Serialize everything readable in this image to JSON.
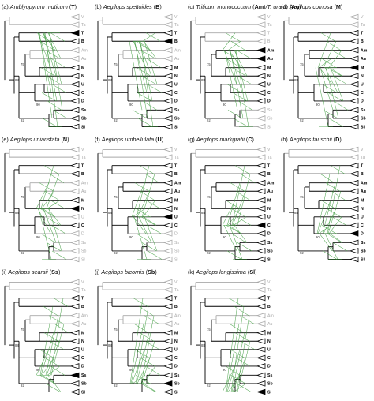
{
  "colors": {
    "black": "#000000",
    "gray": "#a8a8a8",
    "green": "#3a9a3a",
    "green_dark": "#2d6e2d"
  },
  "tips": [
    "V",
    "Ta",
    "T",
    "B",
    "Am",
    "Au",
    "M",
    "N",
    "U",
    "C",
    "D",
    "Ss",
    "Sb",
    "Sl"
  ],
  "support_values": [
    "75",
    "88",
    "90",
    "92"
  ],
  "panels": [
    {
      "id": "a",
      "letter": "(a)",
      "species": "Amblyopyrum muticum",
      "code": "T",
      "highlight": [
        "T"
      ],
      "bold": [
        "T",
        "B",
        "M",
        "N",
        "U",
        "C",
        "D",
        "Ss",
        "Sb",
        "Sl"
      ],
      "gray": [
        "V",
        "Ta",
        "Am",
        "Au"
      ]
    },
    {
      "id": "b",
      "letter": "(b)",
      "species": "Aegilops speltoides",
      "code": "B",
      "highlight": [
        "B"
      ],
      "bold": [
        "T",
        "B",
        "M",
        "N",
        "U",
        "C",
        "D",
        "Ss",
        "Sb",
        "Sl"
      ],
      "gray": [
        "V",
        "Ta",
        "Am",
        "Au"
      ]
    },
    {
      "id": "c",
      "letter": "(c)",
      "species": "Triticum monococcum",
      "code": "Am",
      "species2": "T. urartu",
      "code2": "Au",
      "highlight": [
        "Am",
        "Au"
      ],
      "bold": [
        "Am",
        "Au",
        "M",
        "N",
        "U",
        "C",
        "D"
      ],
      "gray": [
        "V",
        "Ta",
        "T",
        "B",
        "Ss",
        "Sb",
        "Sl"
      ]
    },
    {
      "id": "d",
      "letter": "(d)",
      "species": "Aegilops comosa",
      "code": "M",
      "highlight": [
        "M"
      ],
      "bold": [
        "T",
        "B",
        "Am",
        "Au",
        "M",
        "N",
        "U",
        "C",
        "D",
        "Ss",
        "Sb",
        "Sl"
      ],
      "gray": [
        "V",
        "Ta"
      ]
    },
    {
      "id": "e",
      "letter": "(e)",
      "species": "Aegilops uniaristata",
      "code": "N",
      "highlight": [
        "N"
      ],
      "bold": [
        "T",
        "B",
        "M",
        "N",
        "C"
      ],
      "gray": [
        "V",
        "Ta",
        "Am",
        "Au",
        "U",
        "D",
        "Ss",
        "Sb",
        "Sl"
      ]
    },
    {
      "id": "f",
      "letter": "(f)",
      "species": "Aegilops umbellulata",
      "code": "U",
      "highlight": [
        "U"
      ],
      "bold": [
        "T",
        "B",
        "Am",
        "Au",
        "M",
        "N",
        "U",
        "C"
      ],
      "gray": [
        "V",
        "Ta",
        "D",
        "Ss",
        "Sb",
        "Sl"
      ]
    },
    {
      "id": "g",
      "letter": "(g)",
      "species": "Aegilops markgrafii",
      "code": "C",
      "highlight": [
        "C"
      ],
      "bold": [
        "T",
        "B",
        "Am",
        "Au",
        "M",
        "N",
        "U",
        "C",
        "D",
        "Ss",
        "Sb",
        "Sl"
      ],
      "gray": [
        "V",
        "Ta"
      ]
    },
    {
      "id": "h",
      "letter": "(h)",
      "species": "Aegilops tauschii",
      "code": "D",
      "highlight": [
        "D"
      ],
      "bold": [
        "T",
        "B",
        "Am",
        "Au",
        "M",
        "N",
        "U",
        "C",
        "D",
        "Ss",
        "Sb",
        "Sl"
      ],
      "gray": [
        "V",
        "Ta"
      ]
    },
    {
      "id": "i",
      "letter": "(i)",
      "species": "Aegilops searsii",
      "code": "Ss",
      "highlight": [
        "Ss"
      ],
      "bold": [
        "T",
        "B",
        "M",
        "N",
        "U",
        "C",
        "D",
        "Ss",
        "Sb",
        "Sl"
      ],
      "gray": [
        "V",
        "Ta",
        "Am",
        "Au"
      ]
    },
    {
      "id": "j",
      "letter": "(j)",
      "species": "Aegilops bicornis",
      "code": "Sb",
      "highlight": [
        "Sb"
      ],
      "bold": [
        "T",
        "B",
        "M",
        "N",
        "U",
        "C",
        "D",
        "Ss",
        "Sb",
        "Sl"
      ],
      "gray": [
        "V",
        "Ta",
        "Am",
        "Au"
      ]
    },
    {
      "id": "k",
      "letter": "(k)",
      "species": "Aegilops longissima",
      "code": "Sl",
      "highlight": [
        "Sl"
      ],
      "bold": [
        "T",
        "B",
        "M",
        "N",
        "U",
        "C",
        "D",
        "Ss",
        "Sb",
        "Sl"
      ],
      "gray": [
        "V",
        "Ta",
        "Am",
        "Au"
      ]
    }
  ]
}
